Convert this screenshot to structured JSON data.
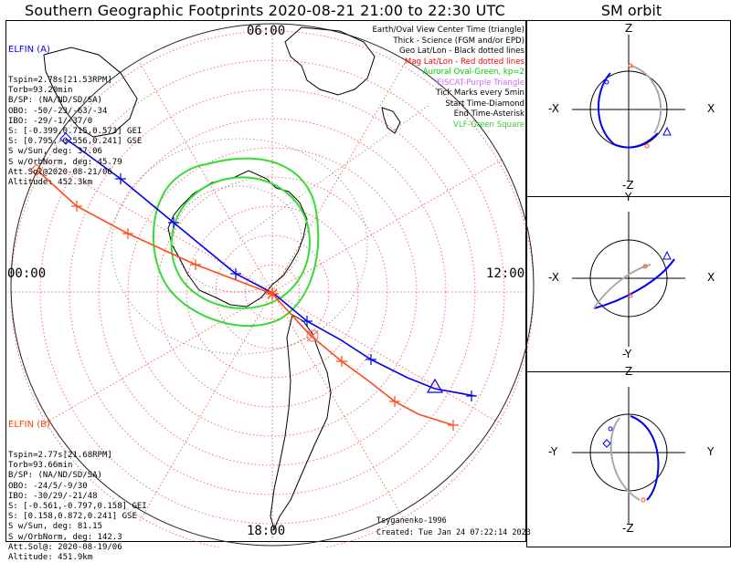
{
  "title": "Southern Geographic Footprints 2020-08-21 21:00 to 22:30 UTC",
  "sm_title": "SM orbit",
  "clock_labels": {
    "top": "06:00",
    "left": "00:00",
    "right": "12:00",
    "bottom": "18:00"
  },
  "legend": [
    {
      "text": "Earth/Oval View Center Time (triangle)",
      "color": "#000000"
    },
    {
      "text": "Thick - Science (FGM and/or EPD)",
      "color": "#000000"
    },
    {
      "text": "Geo Lat/Lon - Black dotted lines",
      "color": "#000000"
    },
    {
      "text": "Mag Lat/Lon - Red dotted lines",
      "color": "#ff0000"
    },
    {
      "text": "Auroral Oval-Green, kp=2",
      "color": "#00cc00"
    },
    {
      "text": "EISCAT-Purple Triangle",
      "color": "#cc66ff"
    },
    {
      "text": "Tick Marks every 5min",
      "color": "#000000"
    },
    {
      "text": "Start Time-Diamond",
      "color": "#000000"
    },
    {
      "text": "End Time-Asterisk",
      "color": "#000000"
    },
    {
      "text": "VLF-Green Square",
      "color": "#33cc33"
    }
  ],
  "elfin_a": {
    "name": "ELFIN (A)",
    "color": "#0000ff",
    "lines": [
      "Tspin=2.78s[21.53RPM]",
      "Torb=93.20min",
      "B/SP: (NA/ND/SD/SA)",
      "OBO: -50/-23/-63/-34",
      "IBO: -29/-1/-37/0",
      "S: [-0.399,0.715,0.573] GEI",
      "S: [0.795,-0.556,0.241] GSE",
      "S w/Sun, deg: 37.06",
      "S w/OrbNorm, deg: 45.79",
      "Att.Sol@2020-08-21/06",
      "Altitude: 452.3km"
    ]
  },
  "elfin_b": {
    "name": "ELFIN (B)",
    "color": "#ff4400",
    "lines": [
      "Tspin=2.77s[21.68RPM]",
      "Torb=93.66min",
      "B/SP: (NA/ND/SD/SA)",
      "OBO: -24/5/-9/30",
      "IBO: -30/29/-21/48",
      "S: [-0.561,-0.797,0.158] GEI",
      "S: [0.158,0.872,0.241] GSE",
      "S w/Sun, deg: 81.15",
      "S w/OrbNorm, deg: 142.3",
      "Att.Sol@: 2020-08-19/06",
      "Altitude: 451.9km"
    ]
  },
  "footer": {
    "model": "Tsyganenko-1996",
    "created": "Created: Tue Jan 24 07:22:14 2023"
  },
  "sm_panels": [
    {
      "top": "Z",
      "bottom": "-Z",
      "left": "-X",
      "right": "X"
    },
    {
      "top": "Y",
      "bottom": "-Y",
      "left": "-X",
      "right": "X"
    },
    {
      "top": "Z",
      "bottom": "-Z",
      "left": "-Y",
      "right": "Y"
    }
  ],
  "colors": {
    "elfin_a": "#0000ff",
    "elfin_b": "#ff4400",
    "oval": "#33dd33",
    "grid": "#ff4444",
    "land": "#000000"
  }
}
